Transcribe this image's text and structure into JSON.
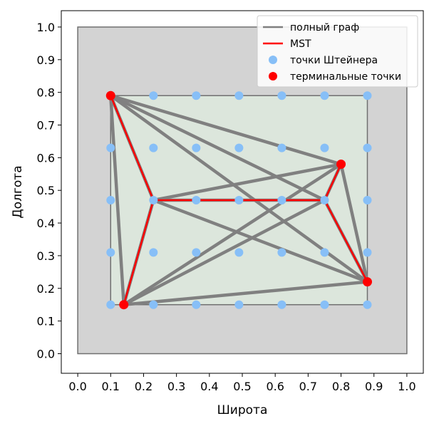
{
  "chart_data": {
    "type": "scatter",
    "xlabel": "Широта",
    "ylabel": "Долгота",
    "xlim": [
      -0.05,
      1.05
    ],
    "ylim": [
      -0.06,
      1.05
    ],
    "xticks": [
      "0.0",
      "0.1",
      "0.2",
      "0.3",
      "0.4",
      "0.5",
      "0.6",
      "0.7",
      "0.8",
      "0.9",
      "1.0"
    ],
    "yticks": [
      "0.0",
      "0.1",
      "0.2",
      "0.3",
      "0.4",
      "0.5",
      "0.6",
      "0.7",
      "0.8",
      "0.9",
      "1.0"
    ],
    "grid": false,
    "legend_position": "top-right",
    "legend": [
      {
        "label": "полный граф",
        "kind": "line",
        "color": "#808080"
      },
      {
        "label": "MST",
        "kind": "line",
        "color": "#ff0000"
      },
      {
        "label": "точки Штейнера",
        "kind": "marker",
        "color": "#87bff7"
      },
      {
        "label": "терминальные точки",
        "kind": "marker",
        "color": "#ff0000"
      }
    ],
    "outer_region": {
      "x": [
        0,
        1
      ],
      "y": [
        0,
        1
      ],
      "fill": "#d3d3d3",
      "edge": "#707070"
    },
    "inner_region": {
      "x": [
        0.1,
        0.88
      ],
      "y": [
        0.15,
        0.79
      ],
      "fill": "#dce6dc",
      "edge": "#707070"
    },
    "terminal_points": [
      {
        "x": 0.1,
        "y": 0.79
      },
      {
        "x": 0.8,
        "y": 0.58
      },
      {
        "x": 0.88,
        "y": 0.22
      },
      {
        "x": 0.14,
        "y": 0.15
      }
    ],
    "steiner_x": [
      0.1,
      0.23,
      0.36,
      0.49,
      0.62,
      0.75,
      0.88
    ],
    "steiner_y": [
      0.15,
      0.31,
      0.47,
      0.63,
      0.79
    ],
    "full_graph_edges": [
      [
        [
          0.1,
          0.79
        ],
        [
          0.8,
          0.58
        ]
      ],
      [
        [
          0.1,
          0.79
        ],
        [
          0.88,
          0.22
        ]
      ],
      [
        [
          0.1,
          0.79
        ],
        [
          0.14,
          0.15
        ]
      ],
      [
        [
          0.1,
          0.79
        ],
        [
          0.23,
          0.47
        ]
      ],
      [
        [
          0.1,
          0.79
        ],
        [
          0.75,
          0.47
        ]
      ],
      [
        [
          0.8,
          0.58
        ],
        [
          0.88,
          0.22
        ]
      ],
      [
        [
          0.8,
          0.58
        ],
        [
          0.14,
          0.15
        ]
      ],
      [
        [
          0.8,
          0.58
        ],
        [
          0.23,
          0.47
        ]
      ],
      [
        [
          0.8,
          0.58
        ],
        [
          0.75,
          0.47
        ]
      ],
      [
        [
          0.88,
          0.22
        ],
        [
          0.14,
          0.15
        ]
      ],
      [
        [
          0.88,
          0.22
        ],
        [
          0.23,
          0.47
        ]
      ],
      [
        [
          0.88,
          0.22
        ],
        [
          0.75,
          0.47
        ]
      ],
      [
        [
          0.14,
          0.15
        ],
        [
          0.23,
          0.47
        ]
      ],
      [
        [
          0.14,
          0.15
        ],
        [
          0.75,
          0.47
        ]
      ],
      [
        [
          0.23,
          0.47
        ],
        [
          0.75,
          0.47
        ]
      ]
    ],
    "mst_edges": [
      [
        [
          0.1,
          0.79
        ],
        [
          0.23,
          0.47
        ]
      ],
      [
        [
          0.14,
          0.15
        ],
        [
          0.23,
          0.47
        ]
      ],
      [
        [
          0.23,
          0.47
        ],
        [
          0.75,
          0.47
        ]
      ],
      [
        [
          0.75,
          0.47
        ],
        [
          0.8,
          0.58
        ]
      ],
      [
        [
          0.75,
          0.47
        ],
        [
          0.88,
          0.22
        ]
      ]
    ]
  }
}
